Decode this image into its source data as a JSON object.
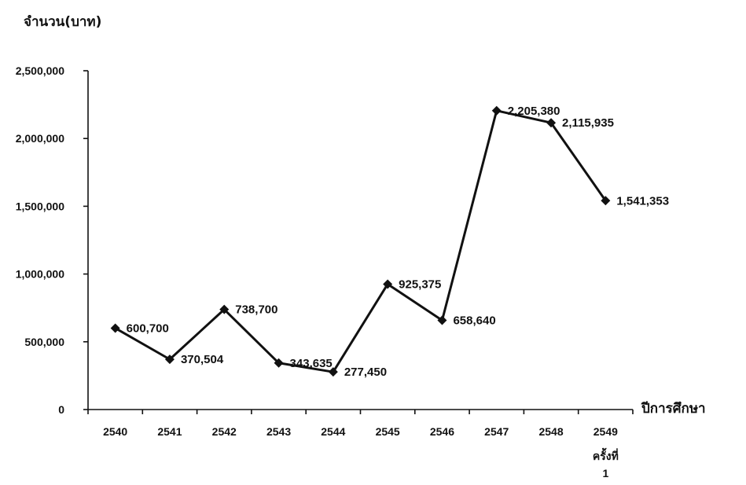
{
  "chart_data": {
    "type": "line",
    "ylabel": "จำนวน(บาท)",
    "xlabel": "ปีการศึกษา",
    "ylim": [
      0,
      2500000
    ],
    "yticks": [
      "0",
      "500,000",
      "1,000,000",
      "1,500,000",
      "2,000,000",
      "2,500,000"
    ],
    "ytick_values": [
      0,
      500000,
      1000000,
      1500000,
      2000000,
      2500000
    ],
    "categories": [
      "2540",
      "2541",
      "2542",
      "2543",
      "2544",
      "2545",
      "2546",
      "2547",
      "2548",
      "2549"
    ],
    "category_notes": [
      "",
      "",
      "",
      "",
      "",
      "",
      "",
      "",
      "",
      "ครั้งที่ 1"
    ],
    "series": [
      {
        "values": [
          600700,
          370504,
          738700,
          343635,
          277450,
          925375,
          658640,
          2205380,
          2115935,
          1541353
        ],
        "labels": [
          "600,700",
          "370,504",
          "738,700",
          "343,635",
          "277,450",
          "925,375",
          "658,640",
          "2,205,380",
          "2,115,935",
          "1,541,353"
        ]
      }
    ],
    "grid": false,
    "legend": "none",
    "colors": {
      "line": "#111111",
      "marker": "#111111",
      "text": "#111111"
    }
  }
}
